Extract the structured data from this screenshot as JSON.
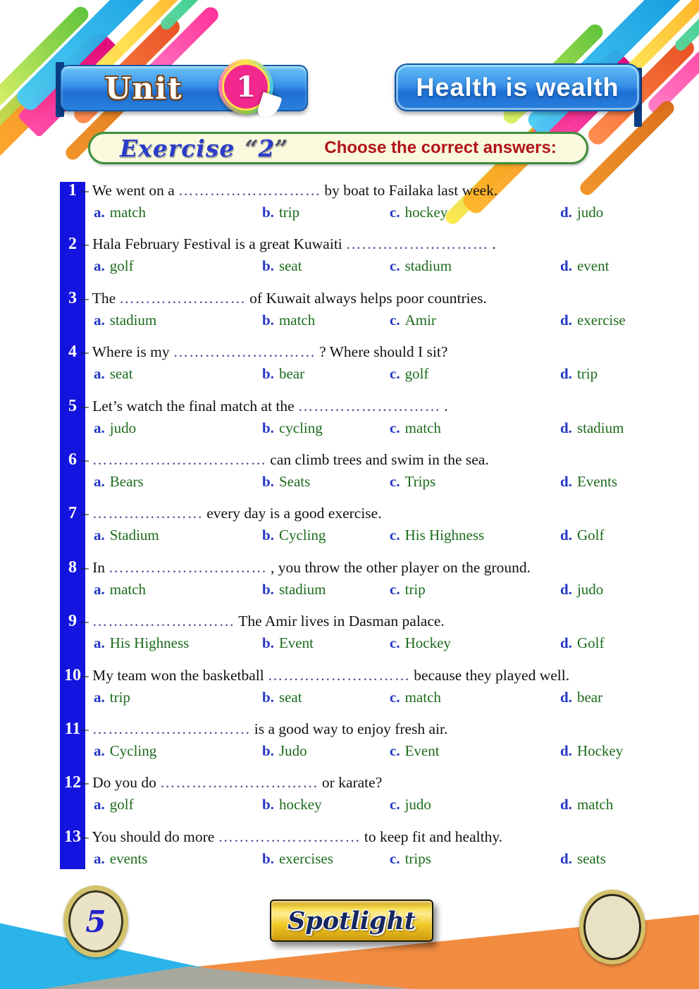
{
  "header": {
    "unit_label": "Unit",
    "unit_number": "1",
    "banner_title": "Health is wealth"
  },
  "exercise": {
    "label": "Exercise",
    "quote_open": "“",
    "number": "2",
    "quote_close": "”",
    "instruction": "Choose the correct answers:"
  },
  "option_letters": [
    "a.",
    "b.",
    "c.",
    "d."
  ],
  "questions": [
    {
      "number": "1",
      "pre": "– We went on a",
      "blank": "………………………",
      "post": "by boat to Failaka last week.",
      "options": [
        "match",
        "trip",
        "hockey",
        "judo"
      ]
    },
    {
      "number": "2",
      "pre": "– Hala February Festival is a great Kuwaiti",
      "blank": "………………………",
      "post": ".",
      "options": [
        "golf",
        "seat",
        "stadium",
        "event"
      ]
    },
    {
      "number": "3",
      "pre": "– The",
      "blank": "……………………",
      "post": "of Kuwait always helps poor countries.",
      "options": [
        "stadium",
        "match",
        "Amir",
        "exercise"
      ]
    },
    {
      "number": "4",
      "pre": "– Where is my",
      "blank": "………………………",
      "post": "? Where should I sit?",
      "options": [
        "seat",
        "bear",
        "golf",
        "trip"
      ]
    },
    {
      "number": "5",
      "pre": "– Let’s watch the final match at the",
      "blank": "………………………",
      "post": ".",
      "options": [
        "judo",
        "cycling",
        "match",
        "stadium"
      ]
    },
    {
      "number": "6",
      "pre": "–",
      "blank": "……………………………",
      "post": "can climb trees and swim in the sea.",
      "options": [
        "Bears",
        "Seats",
        "Trips",
        "Events"
      ]
    },
    {
      "number": "7",
      "pre": "–",
      "blank": "…………………",
      "post": "every day is a good exercise.",
      "options": [
        "Stadium",
        "Cycling",
        "His Highness",
        "Golf"
      ]
    },
    {
      "number": "8",
      "pre": "– In",
      "blank": "…………………………",
      "post": ", you throw the other player on the ground.",
      "options": [
        "match",
        "stadium",
        "trip",
        "judo"
      ]
    },
    {
      "number": "9",
      "pre": "–",
      "blank": "………………………",
      "post": "The Amir lives in Dasman palace.",
      "options": [
        "His Highness",
        "Event",
        "Hockey",
        "Golf"
      ]
    },
    {
      "number": "10",
      "pre": "– My team won the basketball",
      "blank": "………………………",
      "post": "because they played well.",
      "options": [
        "trip",
        "seat",
        "match",
        "bear"
      ]
    },
    {
      "number": "11",
      "pre": "–",
      "blank": "…………………………",
      "post": "is a good way to enjoy fresh air.",
      "options": [
        "Cycling",
        "Judo",
        "Event",
        "Hockey"
      ]
    },
    {
      "number": "12",
      "pre": "– Do you do",
      "blank": "…………………………",
      "post": "or karate?",
      "options": [
        "golf",
        "hockey",
        "judo",
        "match"
      ]
    },
    {
      "number": "13",
      "pre": "– You should do more",
      "blank": "………………………",
      "post": "to keep fit and healthy.",
      "options": [
        "events",
        "exercises",
        "trips",
        "seats"
      ]
    }
  ],
  "footer": {
    "page_number": "5",
    "brand": "Spotlight"
  },
  "colors": {
    "number_bar_blue": "#1414e0",
    "option_letter_blue": "#2336c4",
    "option_word_green": "#1c6b1c",
    "blank_dots_blue": "#39458f",
    "instruction_red": "#b21418",
    "exercise_blue": "#2a3cc8",
    "banner_blue": "#2a80dc",
    "unit_circle_pink": "#f2288e",
    "brand_gold": "#e2b517",
    "brand_navy": "#16275f",
    "footer_cyan": "#2ab4e9",
    "footer_orange": "#f28c41",
    "footer_gray": "#a9a89c"
  }
}
